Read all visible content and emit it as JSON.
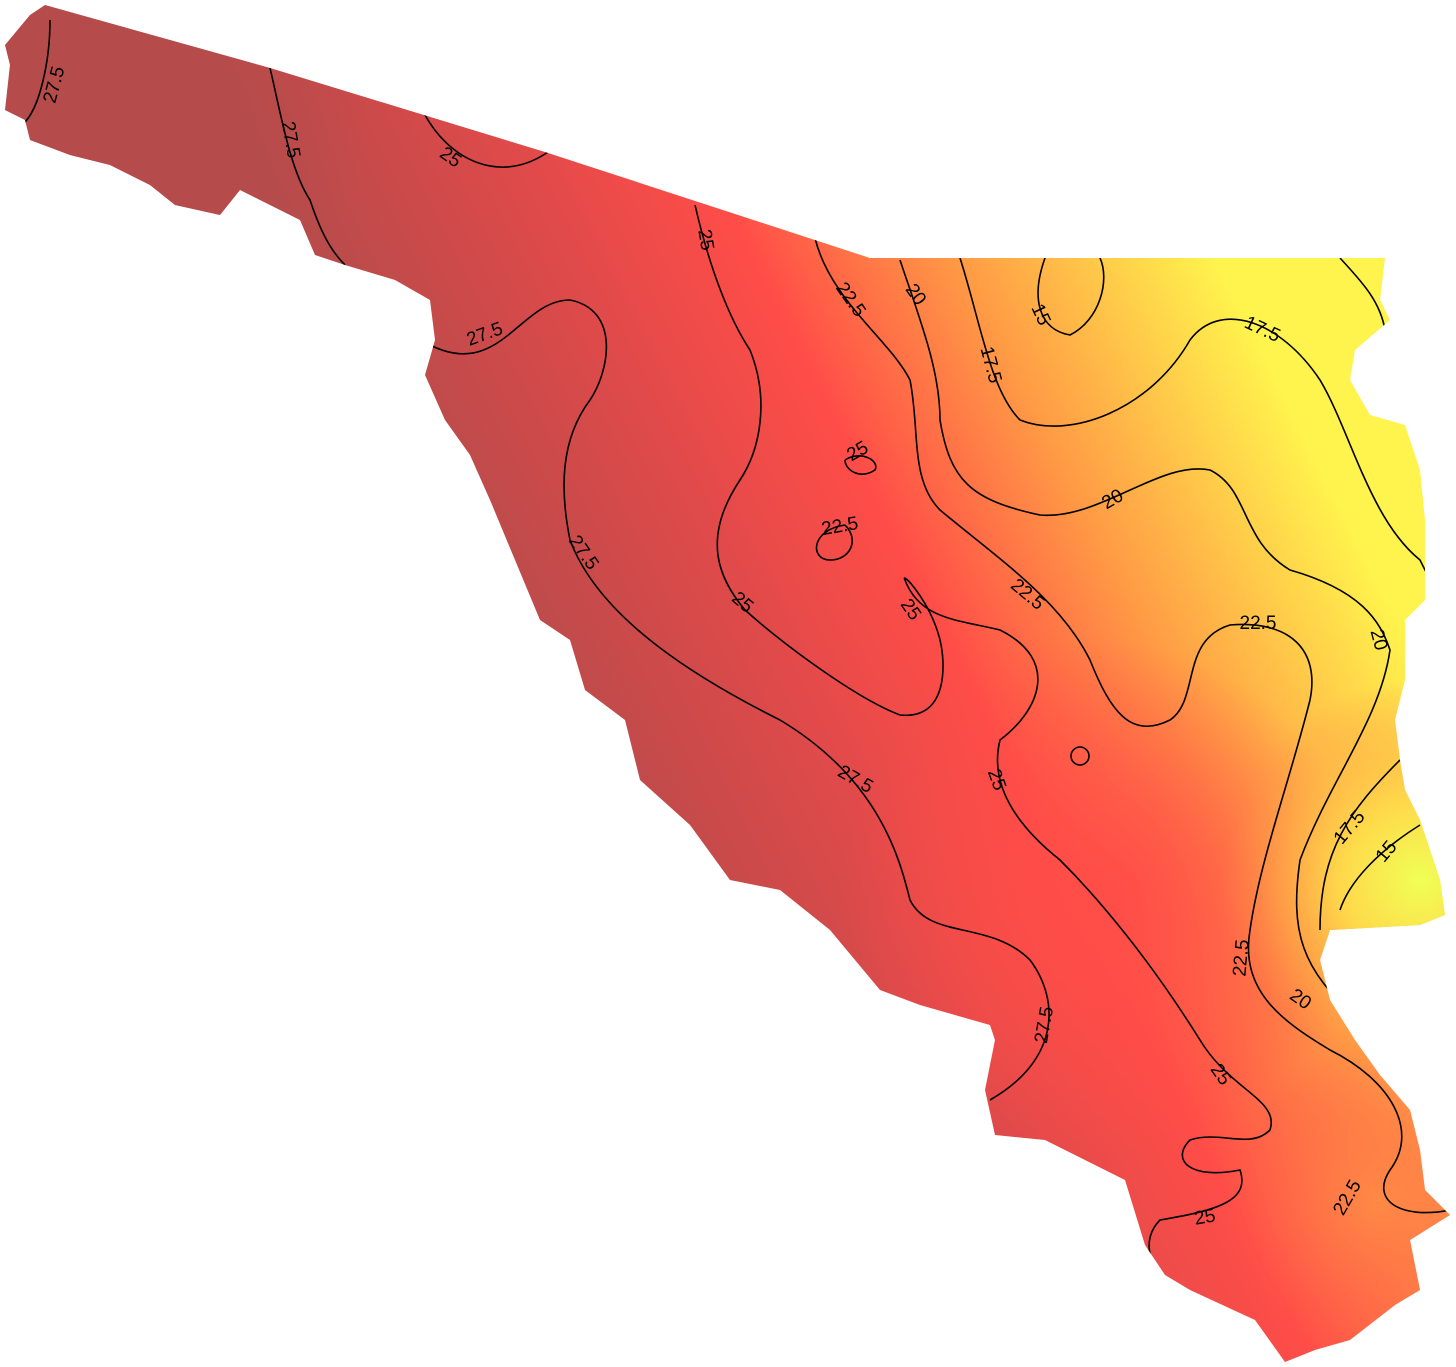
{
  "contour_labels": [
    "27.5",
    "27.5",
    "25",
    "25",
    "22.5",
    "20",
    "15",
    "17.5",
    "17.5",
    "27.5",
    "25",
    "22.5",
    "20",
    "27.5",
    "25",
    "25",
    "22.5",
    "22.5",
    "20",
    "27.5",
    "25",
    "17.5",
    "15",
    "22.5",
    "20",
    "27.5",
    "25",
    "25",
    "22.5"
  ]
}
